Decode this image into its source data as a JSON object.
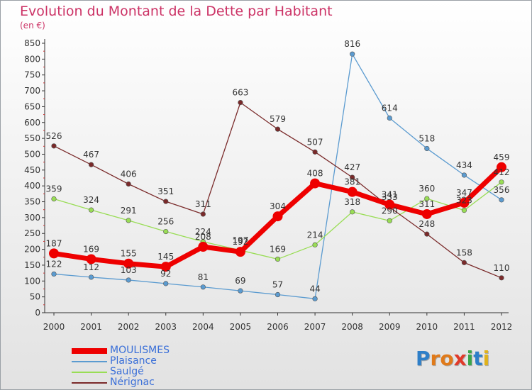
{
  "header": {
    "title": "Evolution du Montant de la Dette par Habitant",
    "unit": "(en €)"
  },
  "logo": {
    "text": "Proxiti",
    "letters": [
      "P",
      "r",
      "o",
      "x",
      "i",
      "t",
      "i"
    ],
    "colors": [
      "#2e7fc8",
      "#e07a1a",
      "#e07a1a",
      "#e03a2a",
      "#3aa64a",
      "#2e7fc8",
      "#e0b21a"
    ]
  },
  "chart_data": {
    "type": "line",
    "title": "Evolution du Montant de la Dette par Habitant",
    "ylabel": "(en €)",
    "xlabel": "",
    "x": [
      2000,
      2001,
      2002,
      2003,
      2004,
      2005,
      2006,
      2007,
      2008,
      2009,
      2010,
      2011,
      2012
    ],
    "ylim": [
      0,
      850
    ],
    "yticks": [
      0,
      50,
      100,
      150,
      200,
      250,
      300,
      350,
      400,
      450,
      500,
      550,
      600,
      650,
      700,
      750,
      800,
      850
    ],
    "grid": false,
    "legend": "bottom-left",
    "series": [
      {
        "name": "MOULISMES",
        "color": "#ee0000",
        "emphasis": true,
        "values": [
          187,
          169,
          155,
          145,
          208,
          192,
          304,
          408,
          381,
          341,
          311,
          347,
          459
        ],
        "labels": [
          "187",
          "169",
          "155",
          "145",
          "208",
          "192",
          "304",
          "408",
          "381",
          "341",
          "311",
          "347",
          "459"
        ]
      },
      {
        "name": "Plaisance",
        "color": "#5b9bd0",
        "values": [
          122,
          112,
          103,
          92,
          81,
          69,
          57,
          44,
          816,
          614,
          518,
          434,
          356
        ],
        "labels": [
          "122",
          "112",
          "103",
          "92",
          "81",
          "69",
          "57",
          "44",
          "816",
          "614",
          "518",
          "434",
          "356"
        ]
      },
      {
        "name": "Saulgé",
        "color": "#99dd55",
        "values": [
          359,
          324,
          291,
          256,
          224,
          197,
          169,
          214,
          318,
          290,
          360,
          323,
          412
        ],
        "labels": [
          "359",
          "324",
          "291",
          "256",
          "224",
          "197",
          "169",
          "214",
          "318",
          "290",
          "360",
          "323",
          "412"
        ]
      },
      {
        "name": "Nérignac",
        "color": "#7a2a2a",
        "values": [
          526,
          467,
          406,
          351,
          311,
          663,
          579,
          507,
          427,
          333,
          248,
          158,
          110
        ],
        "labels": [
          "526",
          "467",
          "406",
          "351",
          "311",
          "663",
          "579",
          "507",
          "427",
          "333",
          "248",
          "158",
          "110"
        ]
      }
    ]
  }
}
